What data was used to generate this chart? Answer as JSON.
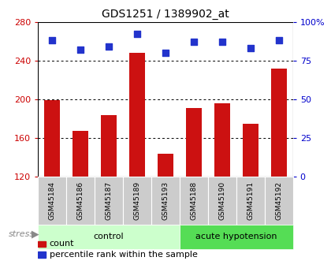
{
  "title": "GDS1251 / 1389902_at",
  "samples": [
    "GSM45184",
    "GSM45186",
    "GSM45187",
    "GSM45189",
    "GSM45193",
    "GSM45188",
    "GSM45190",
    "GSM45191",
    "GSM45192"
  ],
  "counts": [
    199,
    167,
    184,
    248,
    144,
    191,
    196,
    175,
    232
  ],
  "percentiles": [
    88,
    82,
    84,
    92,
    80,
    87,
    87,
    83,
    88
  ],
  "control_indices": [
    0,
    1,
    2,
    3,
    4
  ],
  "acute_indices": [
    5,
    6,
    7,
    8
  ],
  "ylim_left": [
    120,
    280
  ],
  "ylim_right": [
    0,
    100
  ],
  "yticks_left": [
    120,
    160,
    200,
    240,
    280
  ],
  "yticks_right": [
    0,
    25,
    50,
    75,
    100
  ],
  "bar_color": "#CC1111",
  "dot_color": "#2233CC",
  "control_color": "#CCFFCC",
  "acute_color": "#55DD55",
  "tick_bg_color": "#CCCCCC",
  "grid_color": "#333333",
  "left_label_color": "#CC0000",
  "right_label_color": "#0000CC",
  "bar_width": 0.55,
  "legend_items": [
    "count",
    "percentile rank within the sample"
  ],
  "group_labels": [
    "control",
    "acute hypotension"
  ],
  "stress_label": "stress"
}
